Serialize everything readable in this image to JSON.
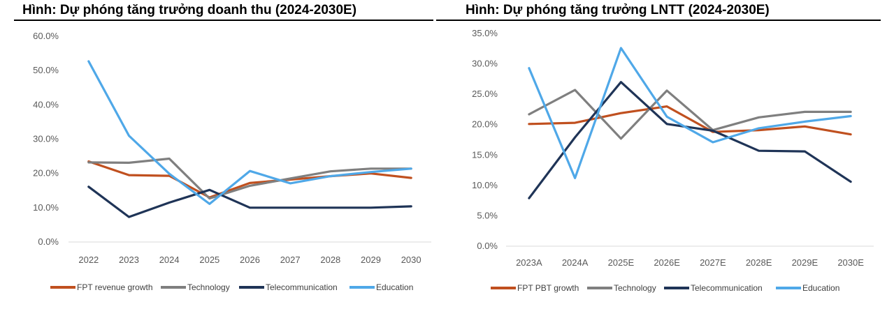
{
  "chart_data": [
    {
      "type": "line",
      "title": "Hình: Dự phóng tăng trưởng doanh thu (2024-2030E)",
      "categories": [
        "2022",
        "2023",
        "2024",
        "2025",
        "2026",
        "2027",
        "2028",
        "2029",
        "2030"
      ],
      "y_ticks": [
        "0.0%",
        "10.0%",
        "20.0%",
        "30.0%",
        "40.0%",
        "50.0%",
        "60.0%"
      ],
      "ylim": [
        0,
        60
      ],
      "grid": false,
      "legend_position": "bottom",
      "series": [
        {
          "name": "FPT revenue growth",
          "color": "#C0501F",
          "values": [
            23.5,
            19.5,
            19.3,
            13.0,
            17.2,
            18.2,
            19.2,
            20.0,
            18.7
          ]
        },
        {
          "name": "Technology",
          "color": "#7F7F7F",
          "values": [
            23.2,
            23.1,
            24.3,
            12.7,
            16.4,
            18.5,
            20.6,
            21.4,
            21.4
          ]
        },
        {
          "name": "Telecommunication",
          "color": "#1F3457",
          "values": [
            16.1,
            7.3,
            11.5,
            15.2,
            10.0,
            10.0,
            10.0,
            10.0,
            10.4
          ]
        },
        {
          "name": "Education",
          "color": "#4FA8E8",
          "values": [
            52.7,
            31.0,
            19.9,
            11.1,
            20.7,
            17.1,
            19.2,
            20.4,
            21.4
          ]
        }
      ]
    },
    {
      "type": "line",
      "title": "Hình: Dự phóng tăng trưởng LNTT (2024-2030E)",
      "categories": [
        "2023A",
        "2024A",
        "2025E",
        "2026E",
        "2027E",
        "2028E",
        "2029E",
        "2030E"
      ],
      "y_ticks": [
        "0.0%",
        "5.0%",
        "10.0%",
        "15.0%",
        "20.0%",
        "25.0%",
        "30.0%",
        "35.0%"
      ],
      "ylim": [
        0,
        35
      ],
      "grid": false,
      "legend_position": "bottom",
      "series": [
        {
          "name": "FPT PBT growth",
          "color": "#C0501F",
          "values": [
            20.1,
            20.3,
            21.9,
            23.0,
            18.8,
            19.1,
            19.7,
            18.4
          ]
        },
        {
          "name": "Technology",
          "color": "#7F7F7F",
          "values": [
            21.7,
            25.7,
            17.7,
            25.6,
            19.1,
            21.2,
            22.1,
            22.1
          ]
        },
        {
          "name": "Telecommunication",
          "color": "#1F3457",
          "values": [
            7.9,
            17.9,
            27.0,
            20.1,
            19.0,
            15.7,
            15.6,
            10.6
          ]
        },
        {
          "name": "Education",
          "color": "#4FA8E8",
          "values": [
            29.3,
            11.2,
            32.6,
            21.3,
            17.1,
            19.4,
            20.5,
            21.4
          ]
        }
      ]
    }
  ]
}
